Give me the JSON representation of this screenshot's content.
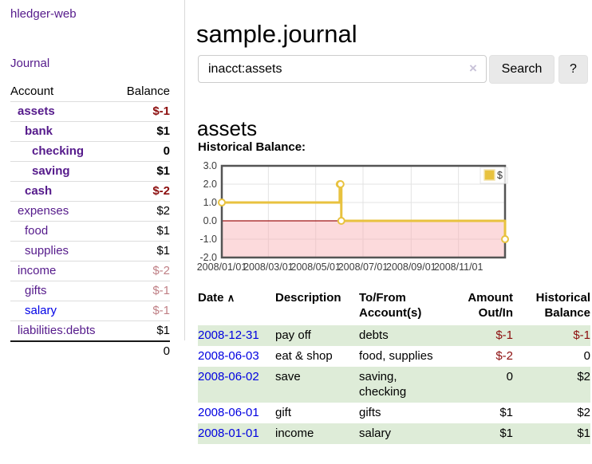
{
  "app": {
    "brand": "hledger-web",
    "nav_journal": "Journal"
  },
  "header": {
    "title": "sample.journal"
  },
  "search": {
    "value": "inacct:assets",
    "clear_icon": "×",
    "button_label": "Search",
    "help_label": "?"
  },
  "account_page": {
    "title": "assets",
    "chart_caption": "Historical Balance:"
  },
  "sidebar": {
    "accounts_table": {
      "headers": {
        "account": "Account",
        "balance": "Balance"
      },
      "rows": [
        {
          "name": "assets",
          "balance": "$-1",
          "indent": 1,
          "bold": true,
          "link": "visited",
          "amount_style": "neg"
        },
        {
          "name": "bank",
          "balance": "$1",
          "indent": 2,
          "bold": true,
          "link": "visited",
          "amount_style": "plain"
        },
        {
          "name": "checking",
          "balance": "0",
          "indent": 3,
          "bold": true,
          "link": "visited",
          "amount_style": "plain"
        },
        {
          "name": "saving",
          "balance": "$1",
          "indent": 3,
          "bold": true,
          "link": "visited",
          "amount_style": "plain"
        },
        {
          "name": "cash",
          "balance": "$-2",
          "indent": 2,
          "bold": true,
          "link": "visited",
          "amount_style": "neg"
        },
        {
          "name": "expenses",
          "balance": "$2",
          "indent": 1,
          "bold": false,
          "link": "visited",
          "amount_style": "plain"
        },
        {
          "name": "food",
          "balance": "$1",
          "indent": 2,
          "bold": false,
          "link": "visited",
          "amount_style": "plain"
        },
        {
          "name": "supplies",
          "balance": "$1",
          "indent": 2,
          "bold": false,
          "link": "visited",
          "amount_style": "plain"
        },
        {
          "name": "income",
          "balance": "$-2",
          "indent": 1,
          "bold": false,
          "link": "visited",
          "amount_style": "negmuted"
        },
        {
          "name": "gifts",
          "balance": "$-1",
          "indent": 2,
          "bold": false,
          "link": "visited",
          "amount_style": "negmuted"
        },
        {
          "name": "salary",
          "balance": "$-1",
          "indent": 2,
          "bold": false,
          "link": "new",
          "amount_style": "negmuted"
        },
        {
          "name": "liabilities:debts",
          "balance": "$1",
          "indent": 1,
          "bold": false,
          "link": "visited",
          "amount_style": "plain"
        }
      ],
      "total": "0"
    }
  },
  "chart_data": {
    "type": "line",
    "step": true,
    "title": "Historical Balance:",
    "legend": "$",
    "legend_position": "top-right",
    "grid": true,
    "x_start": "2008-01-01",
    "x_end": "2008-12-31",
    "x_ticks": [
      "2008/01/01",
      "2008/03/01",
      "2008/05/01",
      "2008/07/01",
      "2008/09/01",
      "2008/11/01"
    ],
    "y_ticks": [
      "3.0",
      "2.0",
      "1.0",
      "0.0",
      "-1.0",
      "-2.0"
    ],
    "ylim": [
      -2,
      3
    ],
    "series": [
      {
        "name": "$",
        "color": "#e8c23f",
        "points": [
          [
            "2008-01-01",
            1
          ],
          [
            "2008-06-01",
            2
          ],
          [
            "2008-06-02",
            2
          ],
          [
            "2008-06-03",
            0
          ],
          [
            "2008-12-31",
            -1
          ]
        ]
      }
    ],
    "colors": {
      "border": "#545454",
      "gridline": "#e3e3e3",
      "negative_region": "rgba(249,172,178,0.45)",
      "zero_line": "#9e1616",
      "marker_fill": "#ffffff"
    }
  },
  "register": {
    "headers": {
      "date": "Date",
      "sort_icon": "∧",
      "description": "Description",
      "accounts": "To/From\nAccount(s)",
      "amount": "Amount\nOut/In",
      "balance": "Historical\nBalance"
    },
    "rows": [
      {
        "date": "2008-12-31",
        "description": "pay off",
        "accounts": "debts",
        "amount": "$-1",
        "amount_style": "neg",
        "balance": "$-1",
        "balance_style": "neg"
      },
      {
        "date": "2008-06-03",
        "description": "eat & shop",
        "accounts": "food, supplies",
        "amount": "$-2",
        "amount_style": "neg",
        "balance": "0",
        "balance_style": "plain"
      },
      {
        "date": "2008-06-02",
        "description": "save",
        "accounts": "saving,\nchecking",
        "amount": "0",
        "amount_style": "plain",
        "balance": "$2",
        "balance_style": "plain"
      },
      {
        "date": "2008-06-01",
        "description": "gift",
        "accounts": "gifts",
        "amount": "$1",
        "amount_style": "plain",
        "balance": "$2",
        "balance_style": "plain"
      },
      {
        "date": "2008-01-01",
        "description": "income",
        "accounts": "salary",
        "amount": "$1",
        "amount_style": "plain",
        "balance": "$1",
        "balance_style": "plain"
      }
    ]
  },
  "colors": {
    "link_visited_purple": "#551a8b",
    "link_blue": "#0000e6",
    "negative_red": "#8c0e0e",
    "negative_muted": "#c08086",
    "row_stripe_green": "#deecd8",
    "button_gray": "#e9e9e9"
  }
}
